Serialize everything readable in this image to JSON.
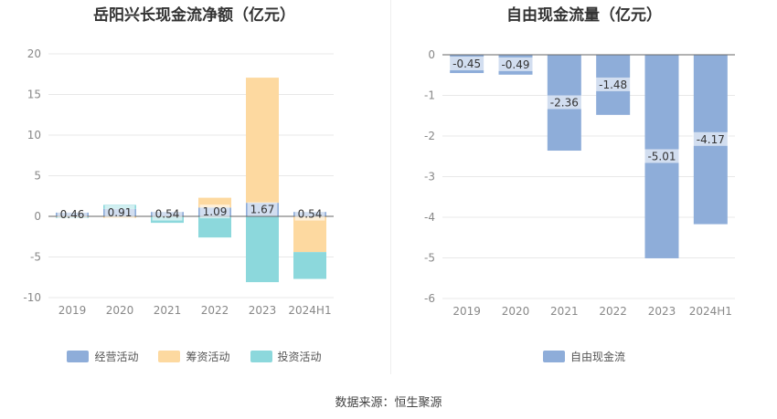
{
  "source": "数据来源：恒生聚源",
  "chart_data": [
    {
      "type": "bar",
      "stacked": true,
      "title": "岳阳兴长现金流净额（亿元）",
      "categories": [
        "2019",
        "2020",
        "2021",
        "2022",
        "2023",
        "2024H1"
      ],
      "ylim": [
        -10,
        20
      ],
      "yticks": [
        -10,
        -5,
        0,
        5,
        10,
        15,
        20
      ],
      "grid": true,
      "legend_position": "bottom",
      "series": [
        {
          "name": "经营活动",
          "color": "#8eadd9",
          "values": [
            0.46,
            0.91,
            0.54,
            1.09,
            1.67,
            0.54
          ]
        },
        {
          "name": "筹资活动",
          "color": "#fdd9a0",
          "values": [
            -0.1,
            -0.2,
            0.0,
            1.2,
            15.4,
            -4.4
          ]
        },
        {
          "name": "投资活动",
          "color": "#8cd8dc",
          "values": [
            -0.1,
            0.5,
            -0.8,
            -2.6,
            -8.1,
            -3.3
          ]
        }
      ],
      "data_labels": [
        "0.46",
        "0.91",
        "0.54",
        "1.09",
        "1.67",
        "0.54"
      ]
    },
    {
      "type": "bar",
      "title": "自由现金流量（亿元）",
      "categories": [
        "2019",
        "2020",
        "2021",
        "2022",
        "2023",
        "2024H1"
      ],
      "ylim": [
        -6,
        0
      ],
      "yticks": [
        -6,
        -5,
        -4,
        -3,
        -2,
        -1,
        0
      ],
      "grid": true,
      "legend_position": "bottom",
      "series": [
        {
          "name": "自由现金流",
          "color": "#8eadd9",
          "values": [
            -0.45,
            -0.49,
            -2.36,
            -1.48,
            -5.01,
            -4.17
          ]
        }
      ],
      "data_labels": [
        "-0.45",
        "-0.49",
        "-2.36",
        "-1.48",
        "-5.01",
        "-4.17"
      ]
    }
  ]
}
